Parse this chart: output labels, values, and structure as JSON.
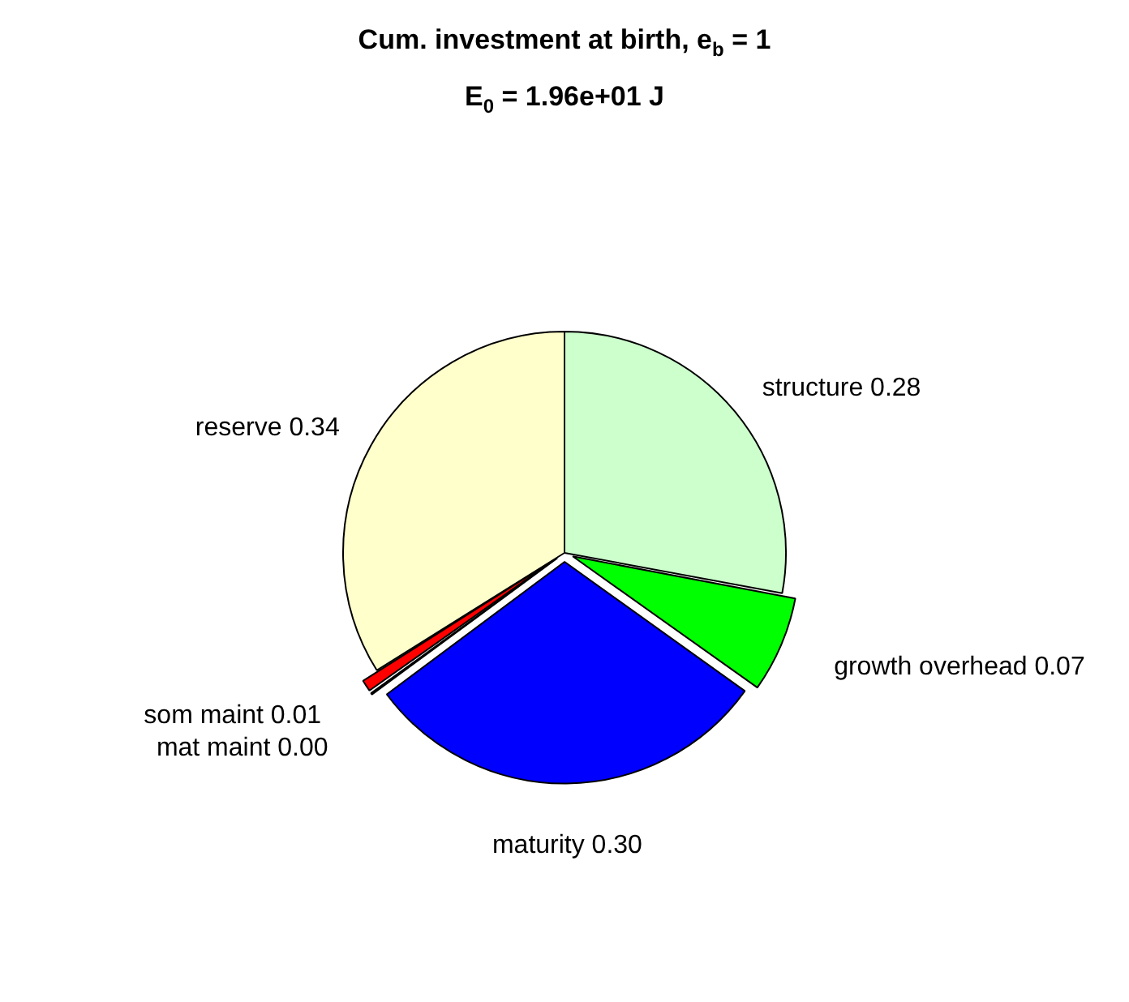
{
  "chart_data": {
    "type": "pie",
    "title": "Cum. investment at birth, e$_{b}$ = 1",
    "subtitle": "E$_{0}$ = 1.96e+01 J",
    "categories": [
      "structure",
      "growth overhead",
      "maturity",
      "mat maint",
      "som maint",
      "reserve"
    ],
    "values": [
      0.28,
      0.07,
      0.3,
      0.003,
      0.01,
      0.34
    ],
    "value_labels": [
      "0.28",
      "0.07",
      "0.30",
      "0.00",
      "0.01",
      "0.34"
    ],
    "colors": [
      "#ccffcc",
      "#00ff00",
      "#0000ff",
      "#ff00ff",
      "#ff0000",
      "#ffffcc"
    ],
    "legend": false
  }
}
